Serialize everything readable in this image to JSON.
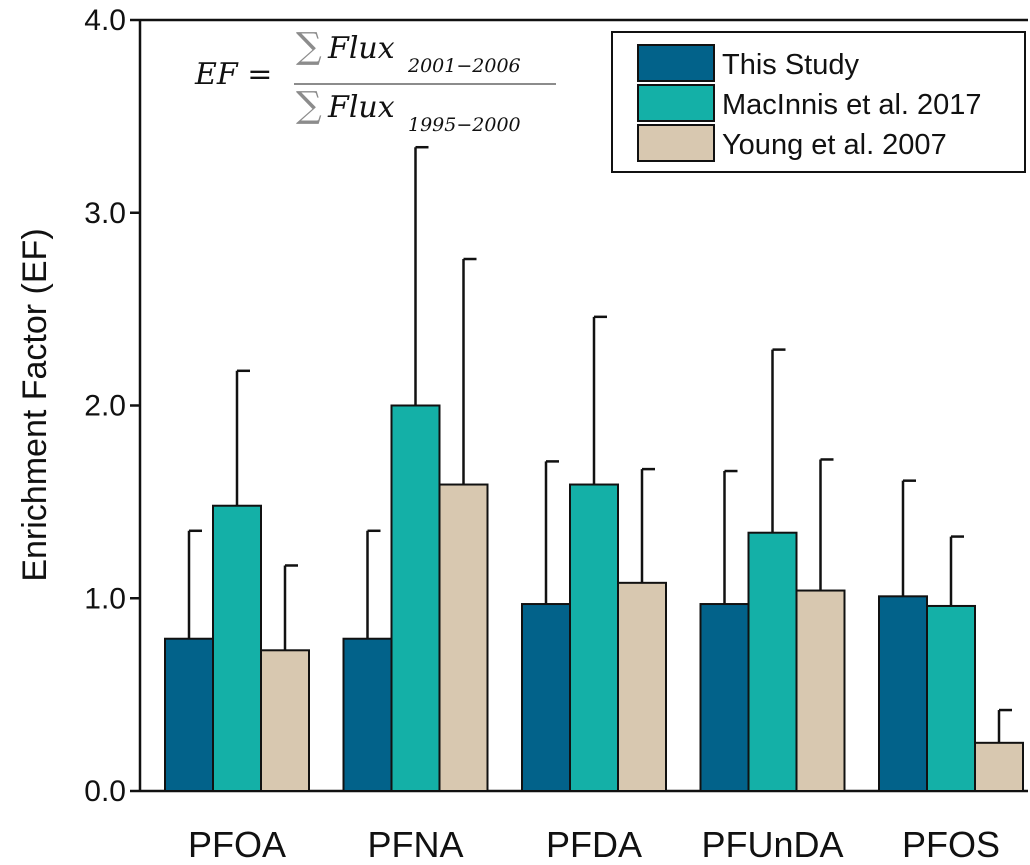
{
  "chart_data": {
    "type": "bar",
    "ylabel": "Enrichment Factor (EF)",
    "xlabel": "",
    "ylim": [
      0,
      4.0
    ],
    "yticks": [
      "0.0",
      "1.0",
      "2.0",
      "3.0",
      "4.0"
    ],
    "categories": [
      "PFOA",
      "PFNA",
      "PFDA",
      "PFUnDA",
      "PFOS"
    ],
    "series": [
      {
        "name": "This Study",
        "color": "#02628a",
        "values": [
          0.79,
          0.79,
          0.97,
          0.97,
          1.01
        ],
        "errors": [
          0.56,
          0.56,
          0.74,
          0.69,
          0.6
        ]
      },
      {
        "name": "MacInnis et al. 2017",
        "color": "#14b0a7",
        "values": [
          1.48,
          2.0,
          1.59,
          1.34,
          0.96
        ],
        "errors": [
          0.7,
          1.34,
          0.87,
          0.95,
          0.36
        ]
      },
      {
        "name": "Young et al. 2007",
        "color": "#d8c8b0",
        "values": [
          0.73,
          1.59,
          1.08,
          1.04,
          0.25
        ],
        "errors": [
          0.44,
          1.17,
          0.59,
          0.68,
          0.17
        ]
      }
    ],
    "legend_position": "top-right",
    "grid": false,
    "annotation": {
      "lhs": "EF =",
      "sum": "∑",
      "flux": "Flux",
      "numerator_sub": "2001−2006",
      "denominator_sub": "1995−2000"
    }
  }
}
